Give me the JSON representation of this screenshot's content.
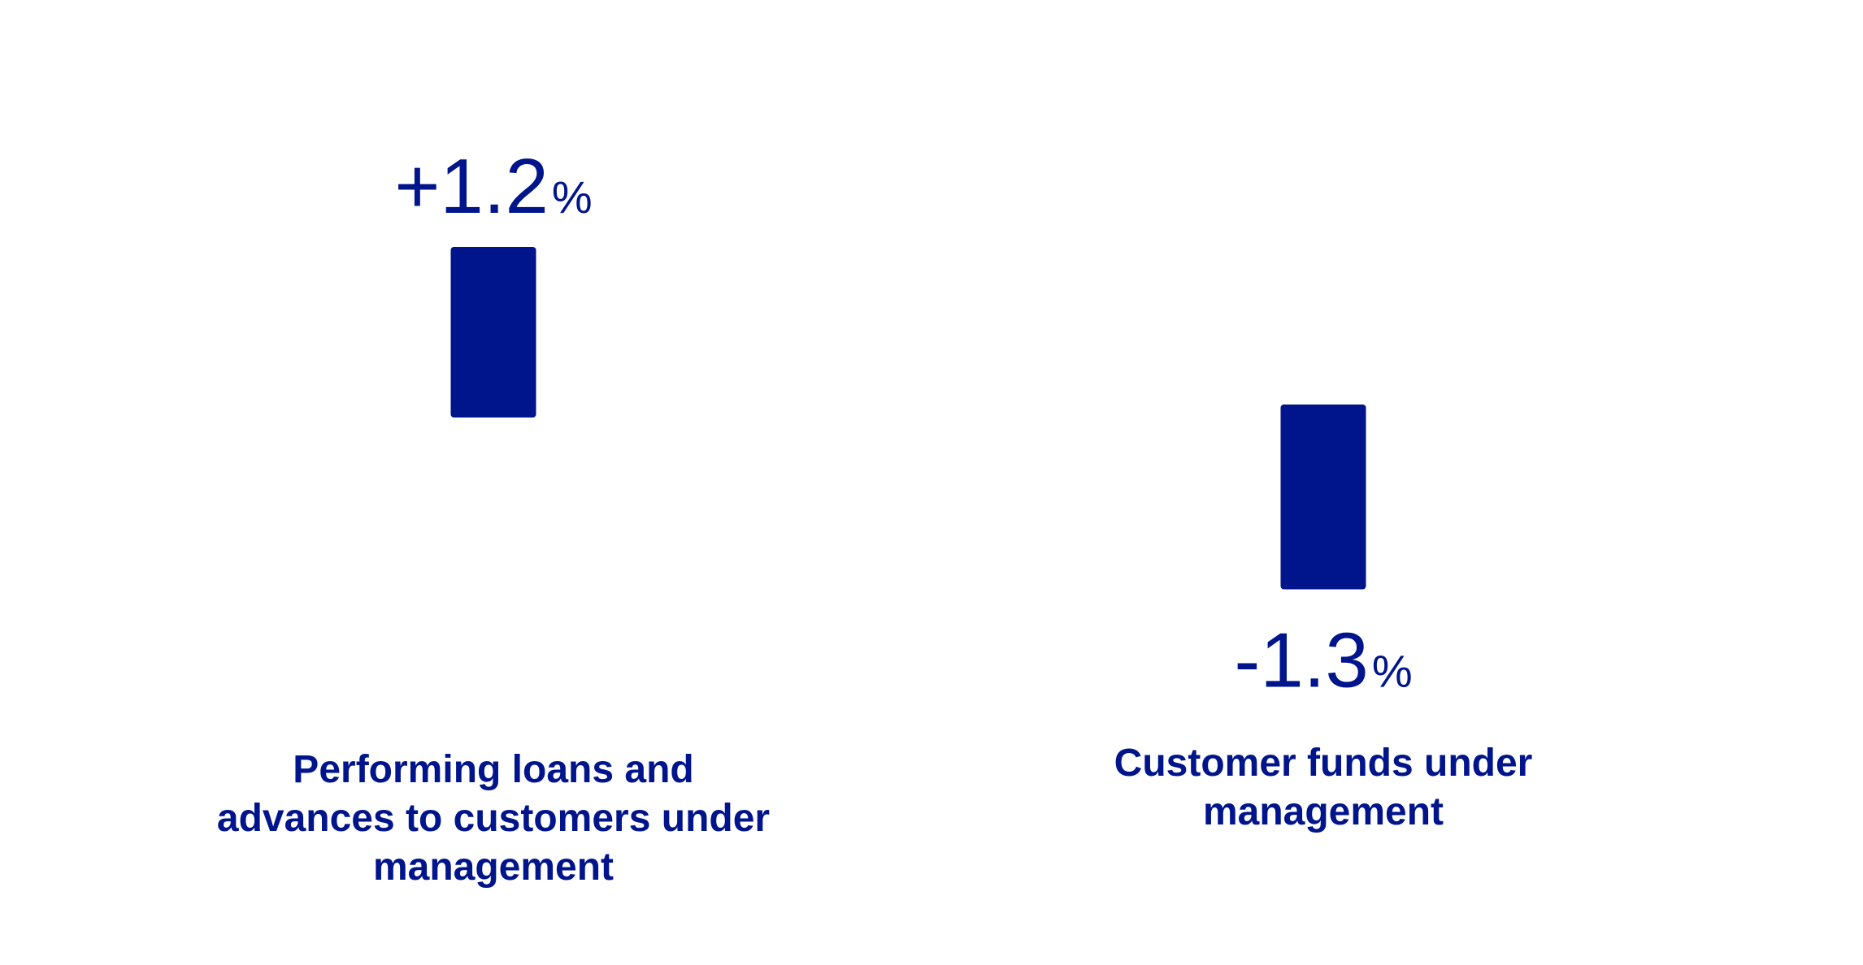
{
  "chart_data": {
    "type": "bar",
    "categories": [
      "Performing loans and advances to customers under management",
      "Customer funds under management"
    ],
    "values": [
      1.2,
      -1.3
    ],
    "value_labels": [
      {
        "number": "+1.2",
        "unit": "%"
      },
      {
        "number": "-1.3",
        "unit": "%"
      }
    ],
    "title": "",
    "xlabel": "",
    "ylabel": "",
    "grid": false,
    "legend": "none",
    "bar_color": "#00148c"
  }
}
